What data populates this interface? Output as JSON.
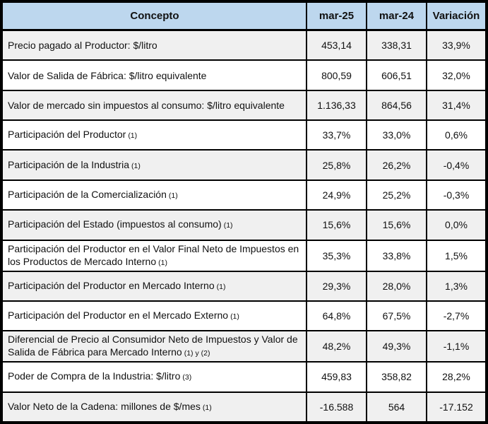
{
  "colors": {
    "header_bg": "#BDD7EE",
    "alt_row_bg": "#F0F0F0",
    "border": "#000000",
    "text": "#111111"
  },
  "chart_data": {
    "type": "table",
    "title": "",
    "columns": [
      "Concepto",
      "mar-25",
      "mar-24",
      "Variación"
    ],
    "rows": [
      {
        "concepto": "Precio pagado al Productor: $/litro",
        "note": "",
        "mar25": "453,14",
        "mar24": "338,31",
        "variacion": "33,9%"
      },
      {
        "concepto": "Valor de Salida de Fábrica: $/litro equivalente",
        "note": "",
        "mar25": "800,59",
        "mar24": "606,51",
        "variacion": "32,0%"
      },
      {
        "concepto": "Valor de mercado sin impuestos al consumo: $/litro equivalente",
        "note": "",
        "mar25": "1.136,33",
        "mar24": "864,56",
        "variacion": "31,4%"
      },
      {
        "concepto": "Participación del Productor",
        "note": "(1)",
        "mar25": "33,7%",
        "mar24": "33,0%",
        "variacion": "0,6%"
      },
      {
        "concepto": "Participación de la Industria",
        "note": "(1)",
        "mar25": "25,8%",
        "mar24": "26,2%",
        "variacion": "-0,4%"
      },
      {
        "concepto": "Participación de la Comercialización",
        "note": "(1)",
        "mar25": "24,9%",
        "mar24": "25,2%",
        "variacion": "-0,3%"
      },
      {
        "concepto": "Participación del Estado (impuestos al consumo)",
        "note": "(1)",
        "mar25": "15,6%",
        "mar24": "15,6%",
        "variacion": "0,0%"
      },
      {
        "concepto": "Participación del Productor en el Valor Final Neto de Impuestos en los Productos de Mercado Interno",
        "note": "(1)",
        "mar25": "35,3%",
        "mar24": "33,8%",
        "variacion": "1,5%"
      },
      {
        "concepto": "Participación del Productor en Mercado Interno",
        "note": "(1)",
        "mar25": "29,3%",
        "mar24": "28,0%",
        "variacion": "1,3%"
      },
      {
        "concepto": "Participación del Productor en el Mercado Externo",
        "note": "(1)",
        "mar25": "64,8%",
        "mar24": "67,5%",
        "variacion": "-2,7%"
      },
      {
        "concepto": "Diferencial de Precio al Consumidor Neto de Impuestos y Valor de Salida de Fábrica para Mercado Interno",
        "note": "(1) y (2)",
        "mar25": "48,2%",
        "mar24": "49,3%",
        "variacion": "-1,1%"
      },
      {
        "concepto": "Poder de Compra de la Industria: $/litro",
        "note": "(3)",
        "mar25": "459,83",
        "mar24": "358,82",
        "variacion": "28,2%"
      },
      {
        "concepto": "Valor Neto de la Cadena: millones de $/mes",
        "note": "(1)",
        "mar25": "-16.588",
        "mar24": "564",
        "variacion": "-17.152"
      }
    ]
  }
}
